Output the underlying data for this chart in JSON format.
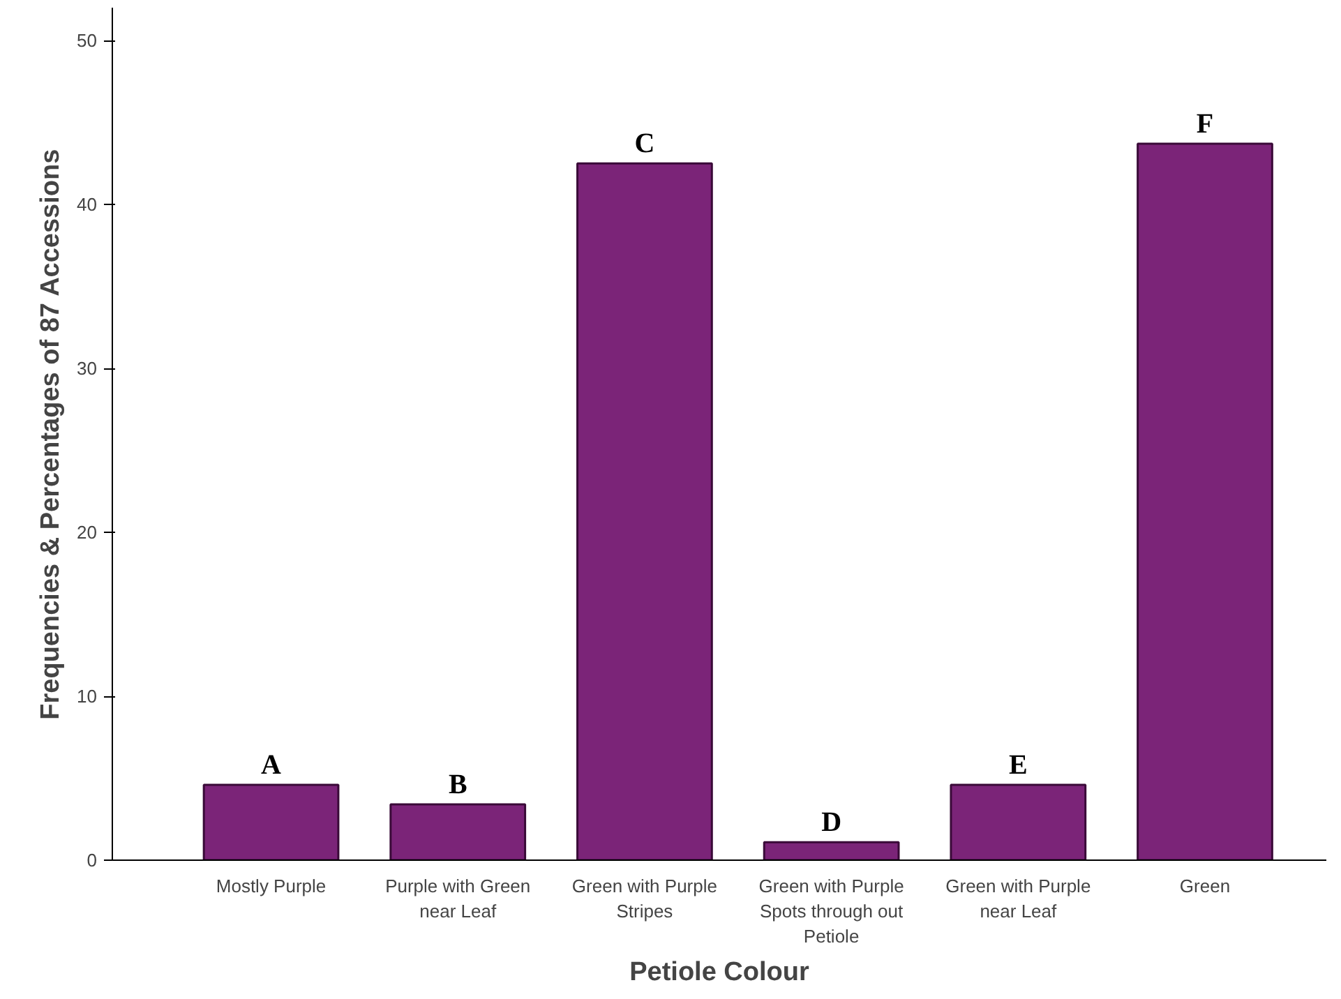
{
  "chart_data": {
    "type": "bar",
    "xlabel": "Petiole Colour",
    "ylabel": "Frequencies & Percentages of 87 Accessions",
    "categories": [
      "Mostly Purple",
      "Purple with Green near Leaf",
      "Green with Purple Stripes",
      "Green with Purple Spots through out Petiole",
      "Green with Purple near Leaf",
      "Green"
    ],
    "values": [
      4.6,
      3.4,
      42.5,
      1.1,
      4.6,
      43.7
    ],
    "color": "#7b2478",
    "ylim": [
      0,
      52
    ],
    "yticks": [
      0,
      10,
      20,
      30,
      40,
      50
    ],
    "grid": false,
    "annotations": [
      {
        "text": "A",
        "x": "Mostly Purple",
        "y": 4.6
      },
      {
        "text": "B",
        "x": "Purple with Green near Leaf",
        "y": 3.4
      },
      {
        "text": "C",
        "x": "Green with Purple Stripes",
        "y": 42.5
      },
      {
        "text": "D",
        "x": "Green with Purple Spots through out Petiole",
        "y": 1.1
      },
      {
        "text": "E",
        "x": "Green with Purple near Leaf",
        "y": 4.6
      },
      {
        "text": "F",
        "x": "Green",
        "y": 43.7
      }
    ]
  }
}
